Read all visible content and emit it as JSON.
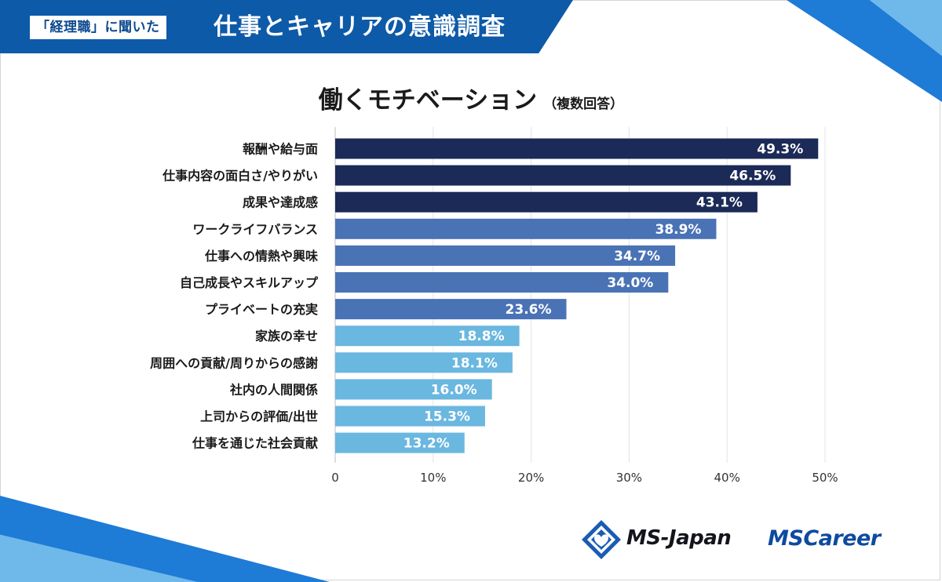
{
  "header": {
    "tag": "「経理職」に聞いた",
    "title": "仕事とキャリアの意識調査"
  },
  "logos": {
    "ms_japan": "MS-Japan",
    "ms_career": "MSCareer"
  },
  "colors": {
    "dark": "#1b2a57",
    "mid": "#4a73b6",
    "light": "#6ab7e0",
    "header": "#0d5aa8"
  },
  "chart_data": {
    "type": "bar",
    "orientation": "horizontal",
    "title": "働くモチベーション",
    "subtitle": "（複数回答）",
    "categories": [
      "報酬や給与面",
      "仕事内容の面白さ/やりがい",
      "成果や達成感",
      "ワークライフバランス",
      "仕事への情熱や興味",
      "自己成長やスキルアップ",
      "プライベートの充実",
      "家族の幸せ",
      "周囲への貢献/周りからの感謝",
      "社内の人間関係",
      "上司からの評価/出世",
      "仕事を通じた社会貢献"
    ],
    "values": [
      49.3,
      46.5,
      43.1,
      38.9,
      34.7,
      34.0,
      23.6,
      18.8,
      18.1,
      16.0,
      15.3,
      13.2
    ],
    "value_labels": [
      "49.3%",
      "46.5%",
      "43.1%",
      "38.9%",
      "34.7%",
      "34.0%",
      "23.6%",
      "18.8%",
      "18.1%",
      "16.0%",
      "15.3%",
      "13.2%"
    ],
    "color_groups": [
      "dark",
      "dark",
      "dark",
      "mid",
      "mid",
      "mid",
      "mid",
      "light",
      "light",
      "light",
      "light",
      "light"
    ],
    "xlim": [
      0,
      50
    ],
    "xticks": [
      0,
      10,
      20,
      30,
      40,
      50
    ],
    "xtick_labels": [
      "0",
      "10%",
      "20%",
      "30%",
      "40%",
      "50%"
    ],
    "grid": true,
    "xlabel": "",
    "ylabel": ""
  }
}
